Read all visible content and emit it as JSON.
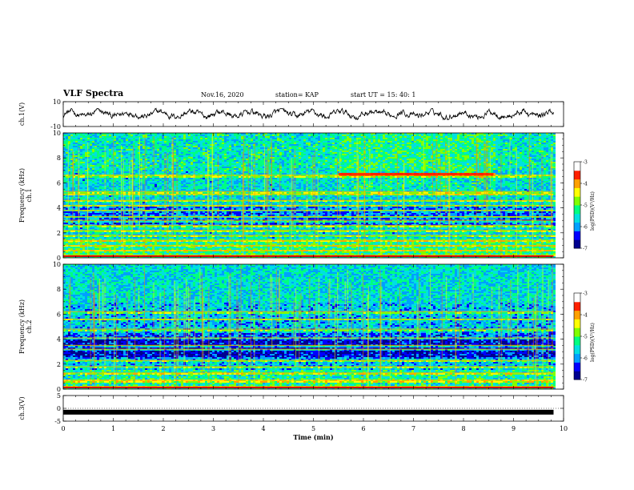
{
  "header": {
    "title": "VLF Spectra",
    "date": "Nov.16, 2020",
    "station": "station= KAP",
    "start": "start  UT =   15: 40: 1"
  },
  "colors": {
    "waveform": "#000000",
    "colormap": [
      "#00008f",
      "#0000ff",
      "#00a0ff",
      "#00e0e0",
      "#00ff80",
      "#80ff00",
      "#ffff00",
      "#ffa000",
      "#ff2000",
      "#ffffff"
    ]
  },
  "chart_data": [
    {
      "type": "line",
      "panel": "ch1-waveform",
      "ylabel": "ch.1(V)",
      "ylim": [
        -10,
        10
      ],
      "yticks": [
        "10",
        "-10"
      ],
      "xlim": [
        0,
        10
      ],
      "description_values": "noisy waveform fluctuating roughly between -4 and +4 V over 0 to 9.8 min",
      "data_end_min": 9.8
    },
    {
      "type": "heatmap",
      "panel": "ch1-spectrogram",
      "ylabel": "ch.1\nFrequency (kHz)",
      "ylim": [
        0,
        10
      ],
      "yticks": [
        "0",
        "2",
        "4",
        "6",
        "8",
        "10"
      ],
      "xlim": [
        0,
        10
      ],
      "colorbar": {
        "label": "log(PSD)(V²/Hz)",
        "range": [
          -7,
          -3
        ],
        "ticks": [
          "-3",
          "-4",
          "-5",
          "-6",
          "-7"
        ]
      },
      "features": {
        "horizontal_lines_khz": [
          0.2,
          0.6,
          1.0,
          1.4,
          1.8,
          2.2,
          2.6,
          3.0,
          3.3,
          3.8,
          4.2,
          4.6,
          5.1,
          5.3,
          6.6
        ],
        "strong_band": {
          "start_min": 5.5,
          "end_min": 8.6,
          "freq_khz": [
            6.6,
            6.8
          ]
        },
        "high_activity_block": {
          "start_min": 5.5,
          "end_min": 8.6,
          "freq_khz": [
            5.0,
            10.0
          ]
        }
      }
    },
    {
      "type": "heatmap",
      "panel": "ch2-spectrogram",
      "ylabel": "ch.2\nFrequency (kHz)",
      "ylim": [
        0,
        10
      ],
      "yticks": [
        "0",
        "2",
        "4",
        "6",
        "8",
        "10"
      ],
      "xlim": [
        0,
        10
      ],
      "colorbar": {
        "label": "log(PSD)(V²/Hz)",
        "range": [
          -7,
          -3
        ],
        "ticks": [
          "-3",
          "-4",
          "-5",
          "-6",
          "-7"
        ]
      },
      "features": {
        "horizontal_lines_khz": [
          0.2,
          0.7,
          1.3,
          1.8,
          2.3,
          3.2,
          3.5,
          4.1,
          4.8,
          5.6,
          6.2
        ]
      }
    },
    {
      "type": "line",
      "panel": "ch3-waveform",
      "ylabel": "ch.3(V)",
      "ylim": [
        -5,
        5
      ],
      "yticks": [
        "5",
        "0",
        "-5"
      ],
      "xlim": [
        0,
        10
      ],
      "description_values": "saturated/thick flat trace near -1.5 V",
      "level_v": -1.5,
      "data_end_min": 9.8,
      "xlabel": "Time  (min)",
      "xticks": [
        "0",
        "1",
        "2",
        "3",
        "4",
        "5",
        "6",
        "7",
        "8",
        "9",
        "10"
      ]
    }
  ]
}
